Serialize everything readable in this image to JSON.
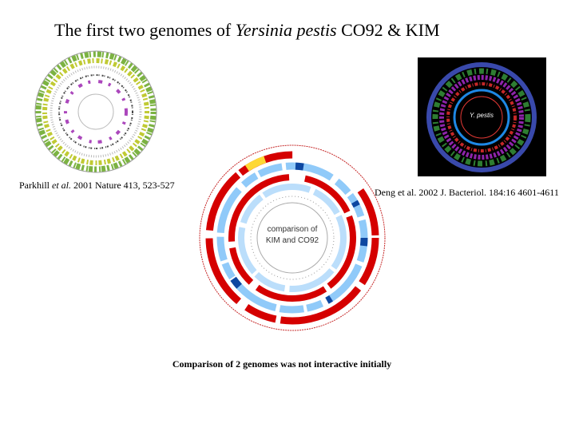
{
  "title": {
    "before": "The first two genomes of ",
    "italic": "Yersinia pestis",
    "after": " CO92 & KIM"
  },
  "captions": {
    "left": {
      "before": "Parkhill ",
      "italic": "et al.",
      "after": " 2001 Nature 413, 523-527"
    },
    "right": "Deng et al. 2002 J. Bacteriol. 184:16 4601-4611"
  },
  "figures": {
    "comparison": [
      "comparison of",
      "KIM and CO92"
    ],
    "kim": "Y. pestis"
  },
  "footer": "Comparison of 2 genomes was not interactive initially"
}
